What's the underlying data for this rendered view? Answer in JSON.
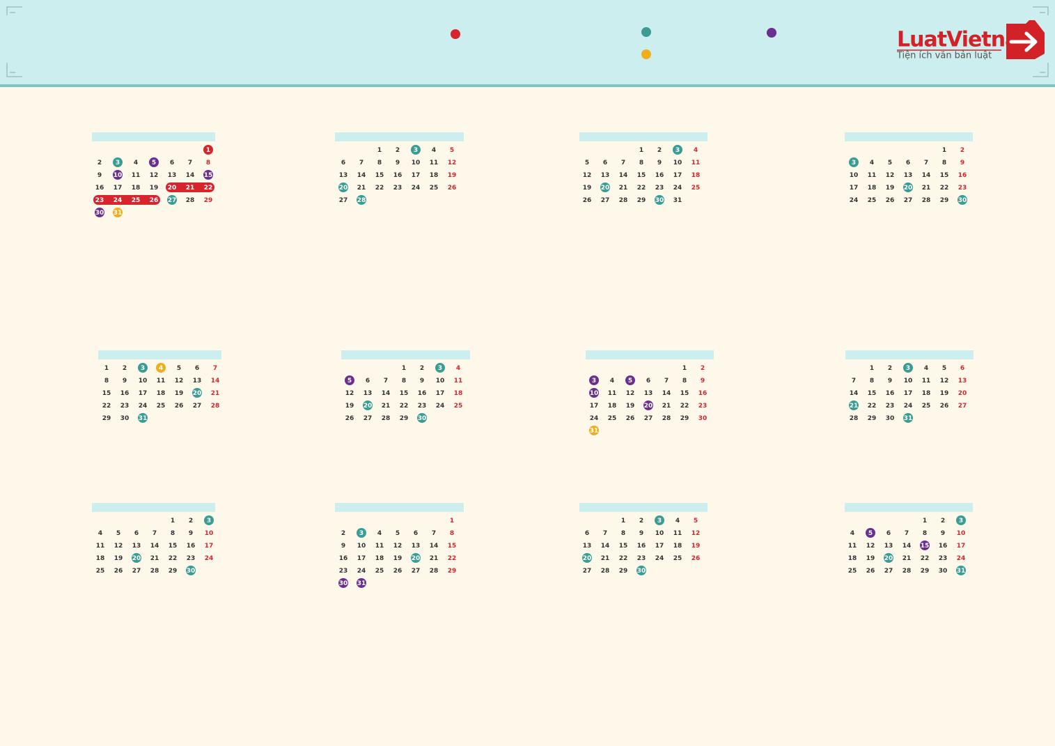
{
  "header": {
    "logo": "LuatVietnam",
    "tagline": "Tiện ích văn bản luật"
  },
  "colors": {
    "red": "#d6262d",
    "teal": "#3a9d95",
    "purple": "#6a2f91",
    "yellow": "#f0ae1c",
    "band": "#d6262d"
  },
  "months": [
    {
      "weeks": [
        [
          null,
          null,
          null,
          null,
          null,
          null,
          {
            "day": 1,
            "mark": "red"
          }
        ],
        [
          2,
          {
            "day": 3,
            "mark": "teal"
          },
          4,
          {
            "day": 5,
            "mark": "purple"
          },
          6,
          7,
          8
        ],
        [
          9,
          {
            "day": 10,
            "mark": "purple"
          },
          11,
          12,
          13,
          14,
          {
            "day": 15,
            "mark": "purple"
          }
        ],
        [
          16,
          17,
          18,
          19,
          {
            "day": 20,
            "mark": "band"
          },
          {
            "day": 21,
            "mark": "band"
          },
          {
            "day": 22,
            "mark": "band"
          }
        ],
        [
          {
            "day": 23,
            "mark": "band"
          },
          {
            "day": 24,
            "mark": "band"
          },
          {
            "day": 25,
            "mark": "band"
          },
          {
            "day": 26,
            "mark": "band"
          },
          {
            "day": 27,
            "mark": "teal"
          },
          28,
          29
        ],
        [
          {
            "day": 30,
            "mark": "purple"
          },
          {
            "day": 31,
            "mark": "yellow"
          },
          null,
          null,
          null,
          null,
          null
        ]
      ]
    },
    {
      "weeks": [
        [
          null,
          null,
          1,
          2,
          {
            "day": 3,
            "mark": "teal"
          },
          4,
          5
        ],
        [
          6,
          7,
          8,
          9,
          10,
          11,
          12
        ],
        [
          13,
          14,
          15,
          16,
          17,
          18,
          19
        ],
        [
          {
            "day": 20,
            "mark": "teal"
          },
          21,
          22,
          23,
          24,
          25,
          26
        ],
        [
          27,
          {
            "day": 28,
            "mark": "teal"
          },
          null,
          null,
          null,
          null,
          null
        ]
      ]
    },
    {
      "weeks": [
        [
          null,
          null,
          null,
          1,
          2,
          {
            "day": 3,
            "mark": "teal"
          },
          4
        ],
        [
          5,
          6,
          7,
          8,
          9,
          10,
          11
        ],
        [
          12,
          13,
          14,
          15,
          16,
          17,
          18
        ],
        [
          19,
          {
            "day": 20,
            "mark": "teal"
          },
          21,
          22,
          23,
          24,
          25
        ],
        [
          26,
          27,
          28,
          29,
          {
            "day": 30,
            "mark": "teal"
          },
          31,
          null
        ]
      ]
    },
    {
      "weeks": [
        [
          null,
          null,
          null,
          null,
          null,
          1,
          2
        ],
        [
          {
            "day": 3,
            "mark": "teal"
          },
          4,
          5,
          6,
          7,
          8,
          9
        ],
        [
          10,
          11,
          12,
          13,
          14,
          15,
          16
        ],
        [
          17,
          18,
          19,
          {
            "day": 20,
            "mark": "teal"
          },
          21,
          22,
          23
        ],
        [
          24,
          25,
          26,
          27,
          28,
          29,
          {
            "day": 30,
            "mark": "teal"
          }
        ]
      ]
    },
    {
      "weeks": [
        [
          1,
          2,
          {
            "day": 3,
            "mark": "teal"
          },
          {
            "day": 4,
            "mark": "yellow"
          },
          5,
          6,
          7
        ],
        [
          8,
          9,
          10,
          11,
          12,
          13,
          14
        ],
        [
          15,
          16,
          17,
          18,
          19,
          {
            "day": 20,
            "mark": "teal"
          },
          21
        ],
        [
          22,
          23,
          24,
          25,
          26,
          27,
          28
        ],
        [
          29,
          30,
          {
            "day": 31,
            "mark": "teal"
          },
          null,
          null,
          null,
          null
        ]
      ]
    },
    {
      "weeks": [
        [
          null,
          null,
          null,
          1,
          2,
          {
            "day": 3,
            "mark": "teal"
          },
          4
        ],
        [
          {
            "day": 5,
            "mark": "purple"
          },
          6,
          7,
          8,
          9,
          10,
          11
        ],
        [
          12,
          13,
          14,
          15,
          16,
          17,
          18
        ],
        [
          19,
          {
            "day": 20,
            "mark": "teal"
          },
          21,
          22,
          23,
          24,
          25
        ],
        [
          26,
          27,
          28,
          29,
          {
            "day": 30,
            "mark": "teal"
          },
          null,
          null
        ]
      ]
    },
    {
      "weeks": [
        [
          null,
          null,
          null,
          null,
          null,
          1,
          2
        ],
        [
          {
            "day": 3,
            "mark": "purple"
          },
          4,
          {
            "day": 5,
            "mark": "purple"
          },
          6,
          7,
          8,
          9
        ],
        [
          {
            "day": 10,
            "mark": "purple"
          },
          11,
          12,
          13,
          14,
          15,
          16
        ],
        [
          17,
          18,
          19,
          {
            "day": 20,
            "mark": "purple"
          },
          21,
          22,
          23
        ],
        [
          24,
          25,
          26,
          27,
          28,
          29,
          30
        ],
        [
          {
            "day": 31,
            "mark": "yellow"
          },
          null,
          null,
          null,
          null,
          null,
          null
        ]
      ]
    },
    {
      "weeks": [
        [
          null,
          1,
          2,
          {
            "day": 3,
            "mark": "teal"
          },
          4,
          5,
          6
        ],
        [
          7,
          8,
          9,
          10,
          11,
          12,
          13
        ],
        [
          14,
          15,
          16,
          17,
          18,
          19,
          20
        ],
        [
          {
            "day": 21,
            "mark": "teal"
          },
          22,
          23,
          24,
          25,
          26,
          27
        ],
        [
          28,
          29,
          30,
          {
            "day": 31,
            "mark": "teal"
          },
          null,
          null,
          null
        ]
      ]
    },
    {
      "weeks": [
        [
          null,
          null,
          null,
          null,
          1,
          2,
          {
            "day": 3,
            "mark": "teal"
          }
        ],
        [
          4,
          5,
          6,
          7,
          8,
          9,
          10
        ],
        [
          11,
          12,
          13,
          14,
          15,
          16,
          17
        ],
        [
          18,
          19,
          {
            "day": 20,
            "mark": "teal"
          },
          21,
          22,
          23,
          24
        ],
        [
          25,
          26,
          27,
          28,
          29,
          {
            "day": 30,
            "mark": "teal"
          },
          null
        ]
      ]
    },
    {
      "weeks": [
        [
          null,
          null,
          null,
          null,
          null,
          null,
          1
        ],
        [
          2,
          {
            "day": 3,
            "mark": "teal"
          },
          4,
          5,
          6,
          7,
          8
        ],
        [
          9,
          10,
          11,
          12,
          13,
          14,
          15
        ],
        [
          16,
          17,
          18,
          19,
          {
            "day": 20,
            "mark": "teal"
          },
          21,
          22
        ],
        [
          23,
          24,
          25,
          26,
          27,
          28,
          29
        ],
        [
          {
            "day": 30,
            "mark": "purple"
          },
          {
            "day": 31,
            "mark": "purple"
          },
          null,
          null,
          null,
          null,
          null
        ]
      ]
    },
    {
      "weeks": [
        [
          null,
          null,
          1,
          2,
          {
            "day": 3,
            "mark": "teal"
          },
          4,
          5
        ],
        [
          6,
          7,
          8,
          9,
          10,
          11,
          12
        ],
        [
          13,
          14,
          15,
          16,
          17,
          18,
          19
        ],
        [
          {
            "day": 20,
            "mark": "teal"
          },
          21,
          22,
          23,
          24,
          25,
          26
        ],
        [
          27,
          28,
          29,
          {
            "day": 30,
            "mark": "teal"
          },
          null,
          null,
          null
        ]
      ]
    },
    {
      "weeks": [
        [
          null,
          null,
          null,
          null,
          1,
          2,
          {
            "day": 3,
            "mark": "teal"
          }
        ],
        [
          4,
          {
            "day": 5,
            "mark": "purple"
          },
          6,
          7,
          8,
          9,
          10
        ],
        [
          11,
          12,
          13,
          14,
          {
            "day": 15,
            "mark": "purple"
          },
          16,
          17
        ],
        [
          18,
          19,
          {
            "day": 20,
            "mark": "teal"
          },
          21,
          22,
          23,
          24
        ],
        [
          25,
          26,
          27,
          28,
          29,
          30,
          {
            "day": 31,
            "mark": "teal"
          }
        ]
      ]
    }
  ]
}
